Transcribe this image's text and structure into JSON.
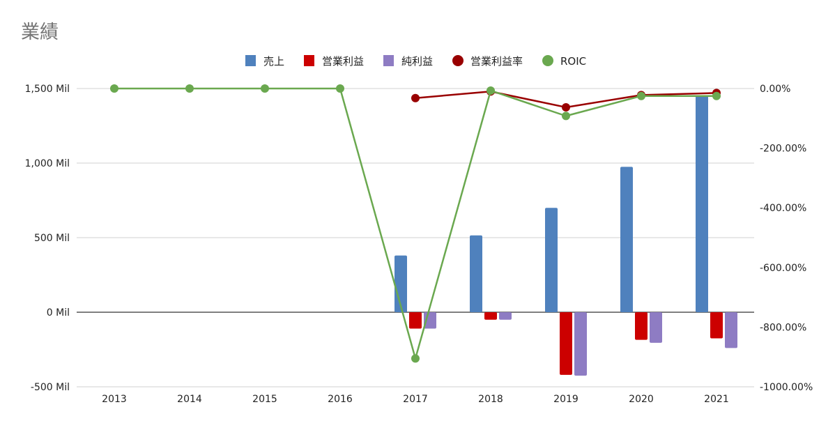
{
  "chart_data": {
    "type": "bar",
    "title": "業績",
    "categories": [
      "2013",
      "2014",
      "2015",
      "2016",
      "2017",
      "2018",
      "2019",
      "2020",
      "2021"
    ],
    "left_axis": {
      "ylim": [
        -500,
        1500
      ],
      "ticks": [
        1500,
        1000,
        500,
        0,
        -500
      ],
      "tick_labels": [
        "1,500 Mil",
        "1,000 Mil",
        "500 Mil",
        "0 Mil",
        "-500 Mil"
      ]
    },
    "right_axis": {
      "ylim": [
        -1000,
        0
      ],
      "ticks": [
        0,
        -200,
        -400,
        -600,
        -800,
        -1000
      ],
      "tick_labels": [
        "0.00%",
        "-200.00%",
        "-400.00%",
        "-600.00%",
        "-800.00%",
        "-1000.00%"
      ]
    },
    "grid": true,
    "legend_position": "top",
    "series": [
      {
        "name": "売上",
        "kind": "bar",
        "axis": "left",
        "color": "#4f81bd",
        "values": [
          0,
          0,
          0,
          0,
          380,
          515,
          700,
          975,
          1450
        ]
      },
      {
        "name": "営業利益",
        "kind": "bar",
        "axis": "left",
        "color": "#cc0000",
        "values": [
          0,
          0,
          0,
          0,
          -110,
          -50,
          -420,
          -185,
          -175
        ]
      },
      {
        "name": "純利益",
        "kind": "bar",
        "axis": "left",
        "color": "#8e7cc3",
        "values": [
          0,
          0,
          0,
          0,
          -110,
          -50,
          -425,
          -205,
          -240
        ]
      },
      {
        "name": "営業利益率",
        "kind": "line",
        "axis": "right",
        "color": "#990000",
        "values": [
          null,
          null,
          null,
          null,
          -32,
          -10,
          -63,
          -22,
          -15
        ]
      },
      {
        "name": "ROIC",
        "kind": "line",
        "axis": "right",
        "color": "#6aa84f",
        "values": [
          0,
          0,
          0,
          0,
          -905,
          -7,
          -92,
          -25,
          -25
        ]
      }
    ]
  }
}
